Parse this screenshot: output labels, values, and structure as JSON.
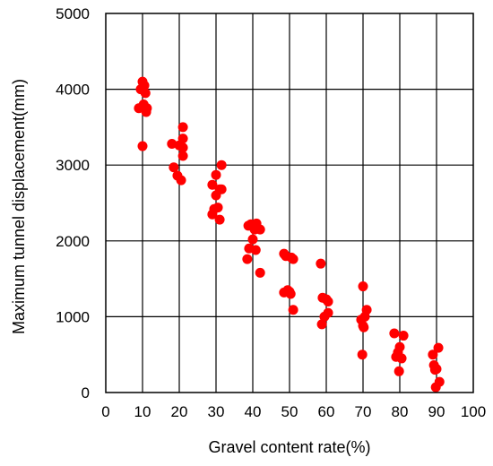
{
  "chart_data": {
    "type": "scatter",
    "title": "",
    "xlabel": "Gravel content rate(%)",
    "ylabel": "Maximum tunnel displacement(mm)",
    "xlim": [
      0,
      100
    ],
    "ylim": [
      0,
      5000
    ],
    "xticks": [
      "0",
      "10",
      "20",
      "30",
      "40",
      "50",
      "60",
      "70",
      "80",
      "90",
      "100"
    ],
    "yticks": [
      "0",
      "1000",
      "2000",
      "3000",
      "4000",
      "5000"
    ],
    "grid": true,
    "marker_color": "#ff0000",
    "series": [
      {
        "points": [
          [
            9,
            3750
          ],
          [
            9.5,
            4000
          ],
          [
            10,
            4100
          ],
          [
            10.5,
            4050
          ],
          [
            10.3,
            3800
          ],
          [
            10.8,
            3950
          ],
          [
            11,
            3700
          ],
          [
            11.2,
            3750
          ],
          [
            10,
            3250
          ],
          [
            18,
            3280
          ],
          [
            18.5,
            2970
          ],
          [
            19.5,
            2860
          ],
          [
            20,
            3260
          ],
          [
            20.5,
            2800
          ],
          [
            21,
            3500
          ],
          [
            21,
            3350
          ],
          [
            21,
            3230
          ],
          [
            21,
            3120
          ],
          [
            29,
            2740
          ],
          [
            29,
            2350
          ],
          [
            29.5,
            2420
          ],
          [
            30,
            2870
          ],
          [
            30,
            2600
          ],
          [
            30.5,
            2440
          ],
          [
            31,
            2680
          ],
          [
            31,
            2280
          ],
          [
            31.5,
            3000
          ],
          [
            31.5,
            2680
          ],
          [
            38.5,
            1760
          ],
          [
            38.8,
            2200
          ],
          [
            39,
            1900
          ],
          [
            39.5,
            2220
          ],
          [
            40,
            2020
          ],
          [
            40.5,
            2150
          ],
          [
            40.8,
            1880
          ],
          [
            41,
            2230
          ],
          [
            42,
            2150
          ],
          [
            42,
            1580
          ],
          [
            48.5,
            1830
          ],
          [
            48.5,
            1320
          ],
          [
            49,
            1800
          ],
          [
            49.5,
            1350
          ],
          [
            50,
            1330
          ],
          [
            50.3,
            1300
          ],
          [
            50.5,
            1780
          ],
          [
            51,
            1760
          ],
          [
            51,
            1090
          ],
          [
            58.5,
            1700
          ],
          [
            58.8,
            900
          ],
          [
            59,
            1250
          ],
          [
            59.5,
            1000
          ],
          [
            60,
            1230
          ],
          [
            60.5,
            1050
          ],
          [
            60.5,
            1200
          ],
          [
            70,
            1400
          ],
          [
            69.5,
            960
          ],
          [
            69.8,
            500
          ],
          [
            70,
            880
          ],
          [
            70.2,
            860
          ],
          [
            70.5,
            1000
          ],
          [
            71,
            1090
          ],
          [
            78.5,
            780
          ],
          [
            79,
            470
          ],
          [
            79.5,
            530
          ],
          [
            79.8,
            280
          ],
          [
            80,
            600
          ],
          [
            80.5,
            450
          ],
          [
            81,
            750
          ],
          [
            89,
            500
          ],
          [
            89.3,
            360
          ],
          [
            89.6,
            300
          ],
          [
            89.8,
            70
          ],
          [
            90,
            310
          ],
          [
            90.5,
            590
          ],
          [
            90.8,
            140
          ]
        ]
      }
    ]
  }
}
